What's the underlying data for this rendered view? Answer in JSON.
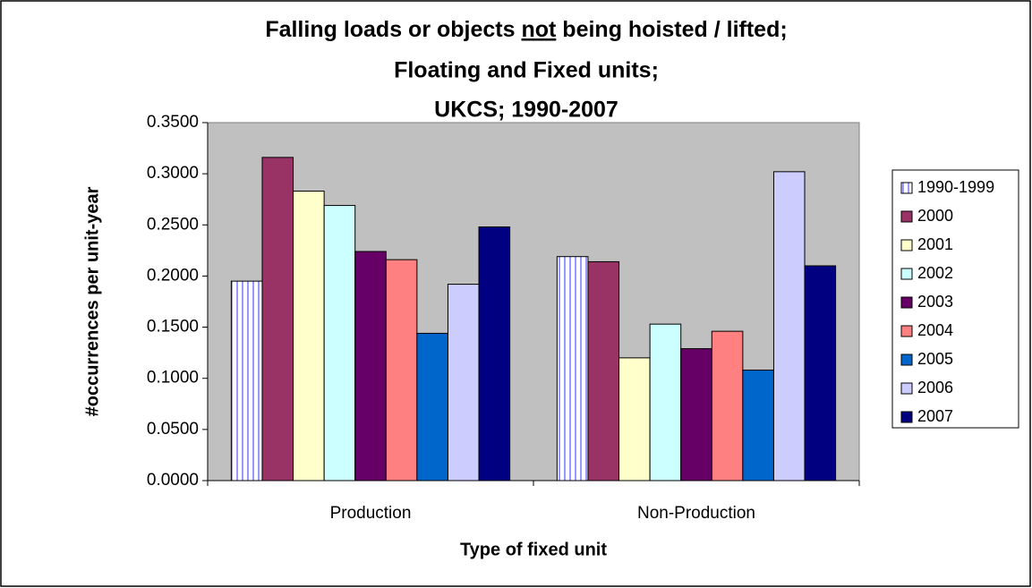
{
  "chart_data": {
    "type": "bar",
    "title": [
      [
        "Falling loads or objects ",
        "not",
        " being hoisted / lifted;"
      ],
      [
        "Floating and Fixed units;"
      ],
      [
        "UKCS; 1990-2007"
      ]
    ],
    "x_label": "Type of fixed unit",
    "y_label": "#occurrences per unit-year",
    "categories": [
      "Production",
      "Non-Production"
    ],
    "series": [
      {
        "name": "1990-1999",
        "color": "#9999ff",
        "pattern": "vertical-stripes",
        "values": [
          0.195,
          0.219
        ]
      },
      {
        "name": "2000",
        "color": "#993366",
        "values": [
          0.316,
          0.214
        ]
      },
      {
        "name": "2001",
        "color": "#ffffcc",
        "values": [
          0.283,
          0.12
        ]
      },
      {
        "name": "2002",
        "color": "#ccffff",
        "values": [
          0.269,
          0.153
        ]
      },
      {
        "name": "2003",
        "color": "#660066",
        "values": [
          0.224,
          0.129
        ]
      },
      {
        "name": "2004",
        "color": "#ff8080",
        "values": [
          0.216,
          0.146
        ]
      },
      {
        "name": "2005",
        "color": "#0066cc",
        "values": [
          0.144,
          0.108
        ]
      },
      {
        "name": "2006",
        "color": "#ccccff",
        "values": [
          0.192,
          0.302
        ]
      },
      {
        "name": "2007",
        "color": "#000080",
        "values": [
          0.248,
          0.21
        ]
      }
    ],
    "ylim": [
      0,
      0.35
    ],
    "yticks": [
      {
        "value": 0,
        "label": "0.0000"
      },
      {
        "value": 0.05,
        "label": "0.0500"
      },
      {
        "value": 0.1,
        "label": "0.1000"
      },
      {
        "value": 0.15,
        "label": "0.1500"
      },
      {
        "value": 0.2,
        "label": "0.2000"
      },
      {
        "value": 0.25,
        "label": "0.2500"
      },
      {
        "value": 0.3,
        "label": "0.3000"
      },
      {
        "value": 0.35,
        "label": "0.3500"
      }
    ],
    "grid": false,
    "legend": "right",
    "plot_background": "#c0c0c0"
  }
}
